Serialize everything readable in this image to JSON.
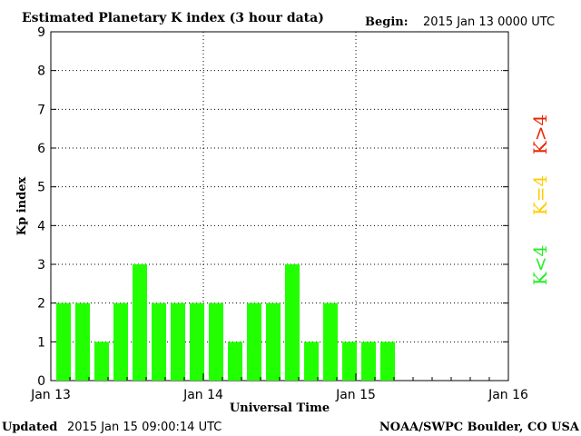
{
  "header": {
    "title": "Estimated Planetary K index (3 hour data)",
    "begin_label": "Begin:",
    "begin_value": "2015 Jan 13 0000 UTC"
  },
  "footer": {
    "updated_label": "Updated",
    "updated_value": "2015 Jan 15 09:00:14 UTC",
    "credit": "NOAA/SWPC Boulder, CO USA"
  },
  "legend": [
    {
      "text": "K<4",
      "color": "#22ee22"
    },
    {
      "text": "K=4",
      "color": "#ffcc00"
    },
    {
      "text": "K>4",
      "color": "#ee2200"
    }
  ],
  "chart_data": {
    "type": "bar",
    "xlabel": "Universal Time",
    "ylabel": "Kp index",
    "ylim": [
      0,
      9
    ],
    "yticks": [
      0,
      1,
      2,
      3,
      4,
      5,
      6,
      7,
      8,
      9
    ],
    "x_tick_labels": [
      "Jan 13",
      "Jan 14",
      "Jan 15",
      "Jan 16"
    ],
    "x_range_days": 3,
    "interval_hours": 3,
    "bar_color": "#22ff00",
    "grid": "dotted",
    "values": [
      2,
      2,
      1,
      2,
      3,
      2,
      2,
      2,
      2,
      1,
      2,
      2,
      3,
      1,
      2,
      1,
      1,
      1
    ]
  }
}
